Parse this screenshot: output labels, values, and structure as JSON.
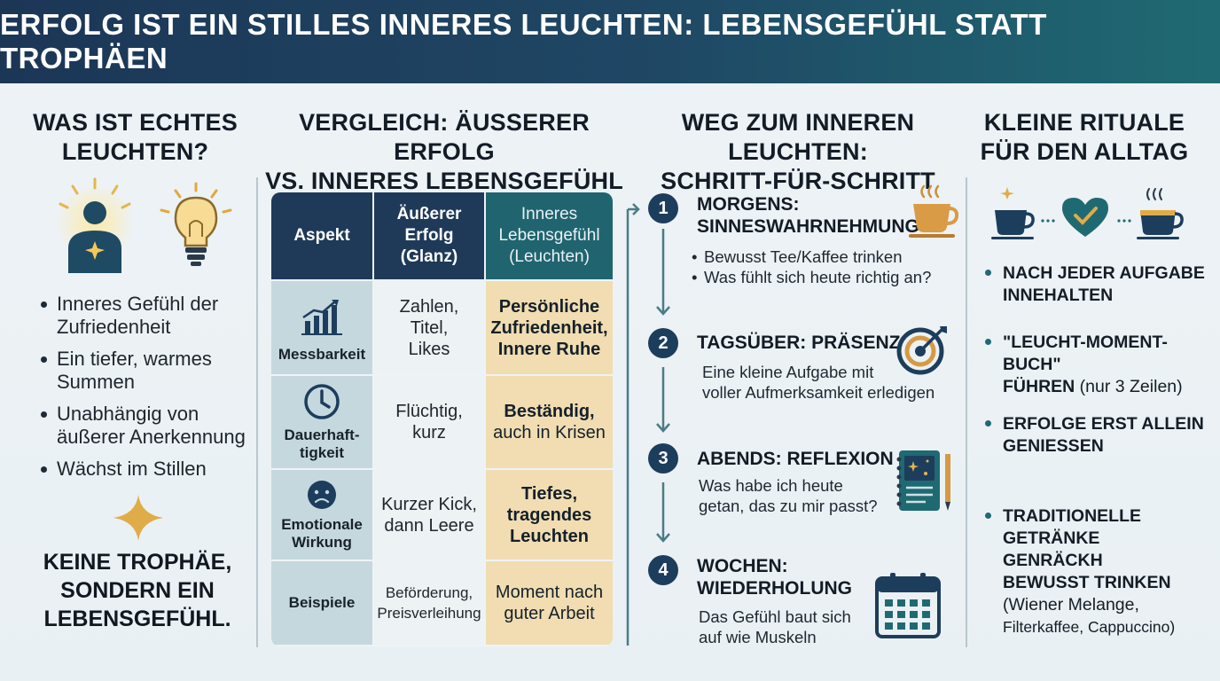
{
  "title": "ERFOLG IST EIN STILLES INNERES LEUCHTEN: LEBENSGEFÜHL STATT TROPHÄEN",
  "col1": {
    "title_l1": "WAS IST ECHTES",
    "title_l2": "LEUCHTEN?",
    "bullets": [
      {
        "l1": "Inneres Gefühl der",
        "l2": "Zufriedenheit"
      },
      {
        "l1": "Ein tiefer, warmes",
        "l2": "Summen"
      },
      {
        "l1": "Unabhängig von",
        "l2": "äußerer Anerkennung"
      },
      {
        "l1": "Wächst im Stillen",
        "l2": ""
      }
    ],
    "claim_l1": "KEINE TROPHÄE,",
    "claim_l2": "SONDERN EIN",
    "claim_l3": "LEBENSGEFÜHL.",
    "icons": [
      "glowing-person-icon",
      "lightbulb-icon",
      "sparkle-star-icon"
    ]
  },
  "col2": {
    "title_l1": "VERGLEICH: ÄUSSERER ERFOLG",
    "title_l2": "VS. INNERES LEBENSGEFÜHL",
    "headers": [
      {
        "l1": "Aspekt",
        "l2": "",
        "l3": ""
      },
      {
        "l1": "Äußerer",
        "l2": "Erfolg",
        "l3": "(Glanz)"
      },
      {
        "l1": "Inneres",
        "l2": "Lebensgefühl",
        "l3": "(Leuchten)"
      }
    ],
    "rows": [
      {
        "icon": "bar-chart-icon",
        "aspect": [
          "Messbarkeit"
        ],
        "outer": [
          "Zahlen,",
          "Titel,",
          "Likes"
        ],
        "inner": [
          "Persönliche",
          "Zufriedenheit,",
          "Innere Ruhe"
        ]
      },
      {
        "icon": "clock-icon",
        "aspect": [
          "Dauerhaft-",
          "tigkeit"
        ],
        "outer": [
          "Flüchtig,",
          "kurz"
        ],
        "inner": [
          "Beständig,",
          "auch in Krisen"
        ]
      },
      {
        "icon": "sad-face-icon",
        "aspect": [
          "Emotionale",
          "Wirkung"
        ],
        "outer": [
          "Kurzer Kick,",
          "dann Leere"
        ],
        "inner": [
          "Tiefes,",
          "tragendes",
          "Leuchten"
        ]
      },
      {
        "icon": "",
        "aspect": [
          "Beispiele"
        ],
        "outer": [
          "Beförderung,",
          "Preisverleihung"
        ],
        "inner": [
          "Moment nach",
          "guter Arbeit"
        ]
      }
    ]
  },
  "col3": {
    "title_l1": "WEG ZUM INNEREN LEUCHTEN:",
    "title_l2": "SCHRITT-FÜR-SCHRITT",
    "steps": [
      {
        "num": "1",
        "title_l1": "MORGENS:",
        "title_l2": "SINNESWAHRNEHMUNG",
        "lines": [
          "Bewusst Tee/Kaffee trinken",
          "Was fühlt sich heute richtig an?"
        ],
        "icon": "coffee-cup-icon"
      },
      {
        "num": "2",
        "title_l1": "TAGSÜBER: PRÄSENZ",
        "title_l2": "",
        "lines": [
          "Eine kleine Aufgabe mit",
          "voller Aufmerksamkeit erledigen"
        ],
        "icon": "target-icon"
      },
      {
        "num": "3",
        "title_l1": "ABENDS: REFLEXION",
        "title_l2": "",
        "lines": [
          "Was habe ich heute",
          "getan, das zu mir passt?"
        ],
        "icon": "journal-icon"
      },
      {
        "num": "4",
        "title_l1": "WOCHEN:",
        "title_l2": "WIEDERHOLUNG",
        "lines": [
          "Das Gefühl baut sich",
          "auf wie Muskeln"
        ],
        "icon": "calendar-icon"
      }
    ]
  },
  "col4": {
    "title_l1": "KLEINE RITUALE",
    "title_l2": "FÜR DEN ALLTAG",
    "icons": [
      "cup-icon",
      "heart-icon",
      "latte-cup-icon"
    ],
    "items": [
      {
        "b1": "NACH JEDER AUFGABE",
        "b2": "INNEHALTEN",
        "b3": "",
        "b4": "",
        "n1": "",
        "n2": ""
      },
      {
        "b1": "\"LEUCHT-MOMENT-BUCH\"",
        "b2": "FÜHREN",
        "b3": "",
        "b4": "",
        "n1": " (nur 3 Zeilen)",
        "n2": ""
      },
      {
        "b1": "ERFOLGE ERST ALLEIN",
        "b2": "GENIESSEN",
        "b3": "",
        "b4": "",
        "n1": "",
        "n2": ""
      },
      {
        "b1": "TRADITIONELLE",
        "b2": "GETRÄNKE",
        "b3": "GENRÄCKH",
        "b4": "BEWUSST TRINKEN",
        "n1": "(Wiener Melange,",
        "n2": "Filterkaffee, Cappuccino)"
      }
    ]
  },
  "colors": {
    "navy": "#1d3d5c",
    "teal": "#20646f",
    "gold": "#d9a63c",
    "cream": "#f1ddb1",
    "light_blue": "#c5d8de"
  }
}
